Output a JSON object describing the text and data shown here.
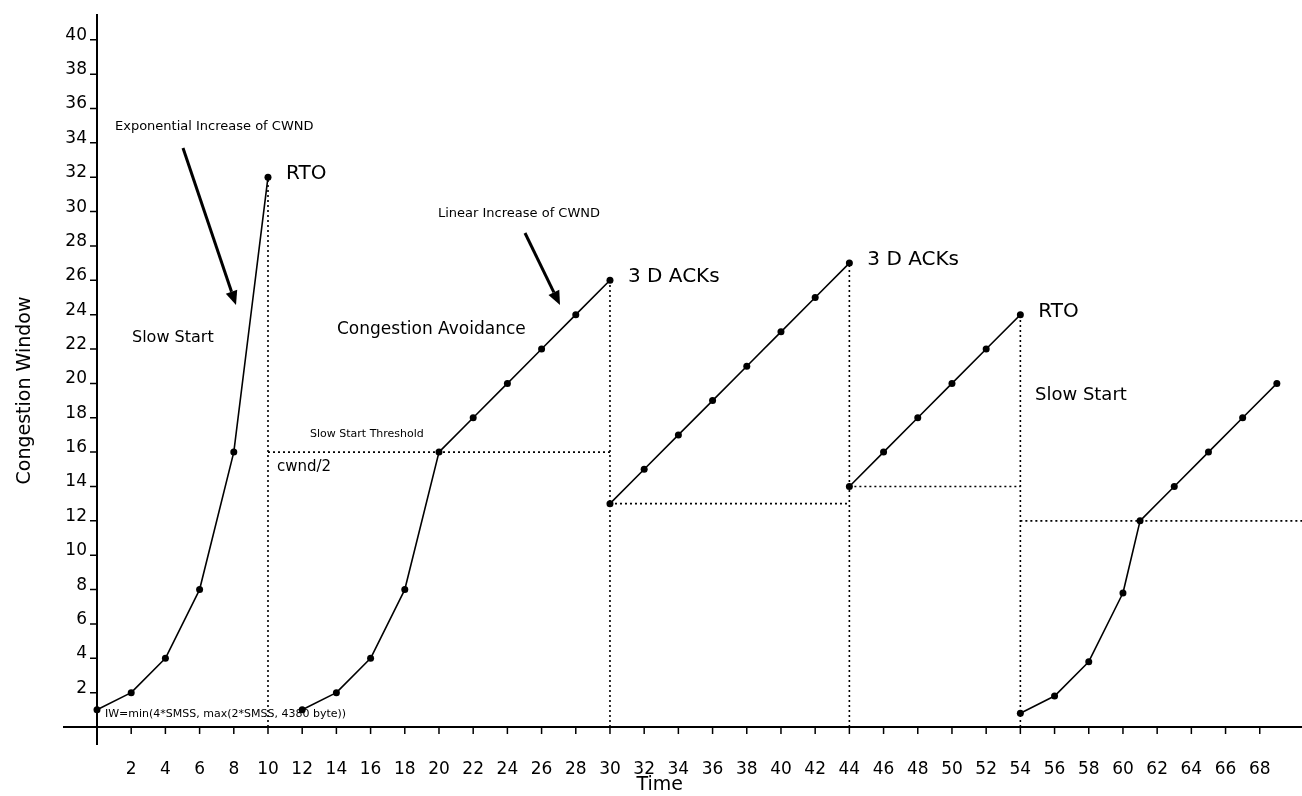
{
  "chart_data": {
    "type": "line",
    "xlabel": "Time",
    "ylabel": "Congestion Window",
    "xlim": [
      0,
      70.5
    ],
    "ylim": [
      0,
      41.5
    ],
    "xticks": [
      2,
      4,
      6,
      8,
      10,
      12,
      14,
      16,
      18,
      20,
      22,
      24,
      26,
      28,
      30,
      32,
      34,
      36,
      38,
      40,
      42,
      44,
      46,
      48,
      50,
      52,
      54,
      56,
      58,
      60,
      62,
      64,
      66,
      68
    ],
    "yticks": [
      2,
      4,
      6,
      8,
      10,
      12,
      14,
      16,
      18,
      20,
      22,
      24,
      26,
      28,
      30,
      32,
      34,
      36,
      38,
      40
    ],
    "grid": false,
    "marker": "circle",
    "line_style": "solid",
    "series": [
      {
        "color": "#000000",
        "x": [
          0,
          2,
          4,
          6,
          8,
          10
        ],
        "values": [
          1,
          2,
          4,
          8,
          16,
          32
        ]
      },
      {
        "color": "#000000",
        "x": [
          12,
          14,
          16,
          18,
          20,
          22,
          24,
          26,
          28,
          30
        ],
        "values": [
          1,
          2,
          4,
          8,
          16,
          18,
          20,
          22,
          24,
          26
        ]
      },
      {
        "color": "#000000",
        "x": [
          30,
          32,
          34,
          36,
          38,
          40,
          42,
          44
        ],
        "values": [
          13,
          15,
          17,
          19,
          21,
          23,
          25,
          27
        ]
      },
      {
        "color": "#000000",
        "x": [
          44,
          46,
          48,
          50,
          52,
          54
        ],
        "values": [
          14,
          16,
          18,
          20,
          22,
          24
        ]
      },
      {
        "color": "#000000",
        "x": [
          54,
          56,
          58,
          60,
          61,
          63,
          65,
          67,
          69
        ],
        "values": [
          0.8,
          1.8,
          3.8,
          7.8,
          12,
          14,
          16,
          18,
          20
        ]
      },
      {
        "type": "line",
        "color": "#000000",
        "line_style": "dotted",
        "marker": "none",
        "x": [
          10,
          10
        ],
        "values": [
          0,
          32
        ]
      },
      {
        "type": "line",
        "color": "#000000",
        "line_style": "dotted",
        "marker": "none",
        "x": [
          10,
          30
        ],
        "values": [
          16,
          16
        ]
      },
      {
        "type": "line",
        "color": "#000000",
        "line_style": "dotted",
        "marker": "none",
        "x": [
          30,
          30
        ],
        "values": [
          0,
          26
        ]
      },
      {
        "type": "line",
        "color": "#000000",
        "line_style": "dotted",
        "marker": "none",
        "x": [
          30,
          44
        ],
        "values": [
          13,
          13
        ]
      },
      {
        "type": "line",
        "color": "#000000",
        "line_style": "dotted",
        "marker": "none",
        "x": [
          44,
          44
        ],
        "values": [
          0,
          27
        ]
      },
      {
        "type": "line",
        "color": "#000000",
        "line_style": "dotted",
        "marker": "none",
        "x": [
          44,
          54
        ],
        "values": [
          14,
          14
        ]
      },
      {
        "type": "line",
        "color": "#000000",
        "line_style": "dotted",
        "marker": "none",
        "x": [
          54,
          54
        ],
        "values": [
          0,
          24
        ]
      },
      {
        "type": "line",
        "color": "#000000",
        "line_style": "dotted",
        "marker": "none",
        "x": [
          54,
          70.5
        ],
        "values": [
          12,
          12
        ]
      }
    ],
    "annotations": [
      "Exponential Increase of CWND",
      {
        "text": "RTO",
        "x": 10,
        "y": 32
      },
      "Linear Increase of CWND",
      "Slow Start",
      "Congestion Avoidance",
      {
        "text": "3 D ACKs",
        "x": 30,
        "y": 26
      },
      {
        "text": "3 D ACKs",
        "x": 44,
        "y": 27
      },
      {
        "text": "RTO",
        "x": 54,
        "y": 24
      },
      "Slow Start",
      "Slow Start Threshold",
      "cwnd/2",
      {
        "text": "IW=min(4*SMSS, max(2*SMSS, 4380 byte))",
        "x": 0,
        "y": 1
      }
    ]
  }
}
